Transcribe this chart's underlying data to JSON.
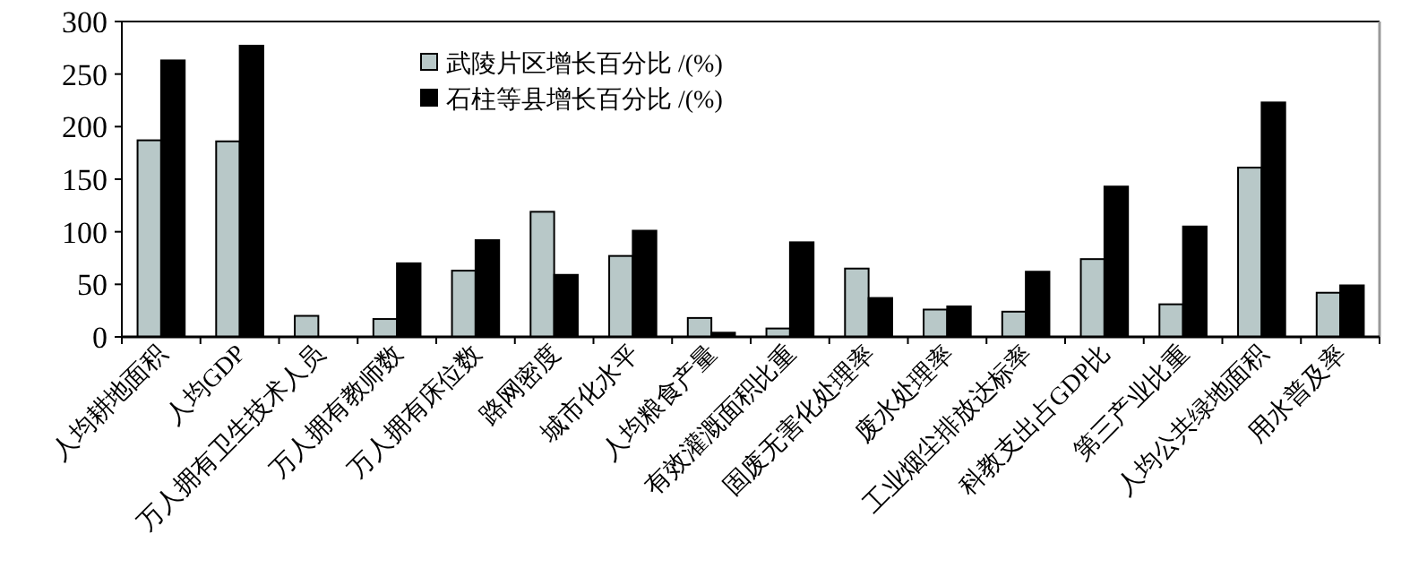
{
  "chart_data": {
    "type": "bar",
    "categories": [
      "人均耕地面积",
      "人均GDP",
      "万人拥有卫生技术人员",
      "万人拥有教师数",
      "万人拥有床位数",
      "路网密度",
      "城市化水平",
      "人均粮食产量",
      "有效灌溉面积比重",
      "固废无害化处理率",
      "废水处理率",
      "工业烟尘排放达标率",
      "科教支出占GDP比",
      "第三产业比重",
      "人均公共绿地面积",
      "用水普及率"
    ],
    "series": [
      {
        "name": "武陵片区增长百分比 /(%)",
        "color": "#b8c8c8",
        "values": [
          187,
          186,
          20,
          17,
          63,
          119,
          77,
          18,
          8,
          65,
          26,
          24,
          74,
          31,
          161,
          42
        ]
      },
      {
        "name": "石柱等县增长百分比 /(%)",
        "color": "#000000",
        "values": [
          263,
          277,
          0,
          70,
          92,
          59,
          101,
          4,
          90,
          37,
          29,
          62,
          143,
          105,
          223,
          49
        ]
      }
    ],
    "ylim": [
      0,
      300
    ],
    "yticks": [
      0,
      50,
      100,
      150,
      200,
      250,
      300
    ],
    "legend": "top",
    "grid": false
  }
}
